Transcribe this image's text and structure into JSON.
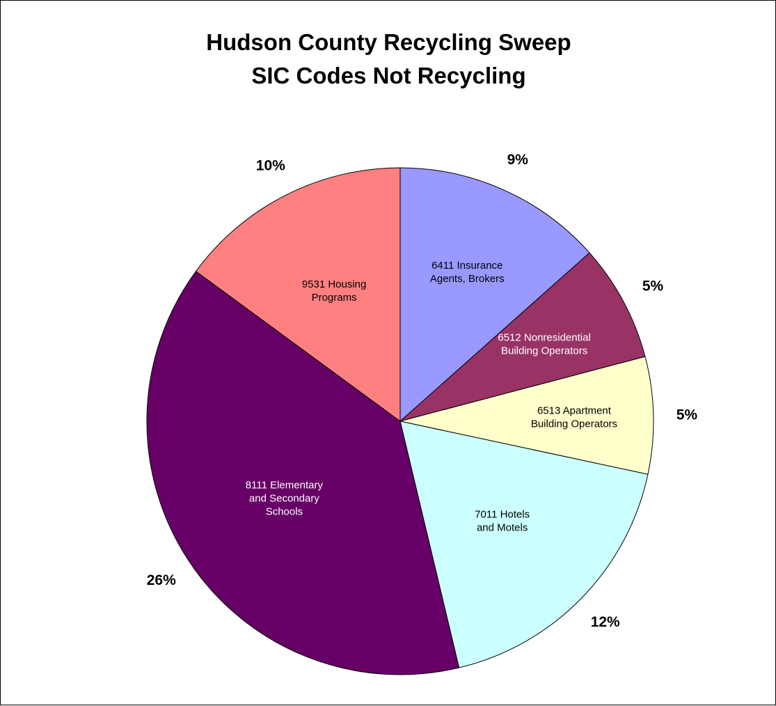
{
  "chart_data": {
    "type": "pie",
    "title": [
      "Hudson County Recycling Sweep",
      "SIC Codes Not Recycling"
    ],
    "slices": [
      {
        "label": [
          "6411 Insurance",
          "Agents, Brokers"
        ],
        "value_label": "9%",
        "value": 9,
        "color": "#9999ff",
        "text_color": "#000000"
      },
      {
        "label": [
          "6512 Nonresidential",
          "Building Operators"
        ],
        "value_label": "5%",
        "value": 5,
        "color": "#993366",
        "text_color": "#ffffff"
      },
      {
        "label": [
          "6513 Apartment",
          "Building Operators"
        ],
        "value_label": "5%",
        "value": 5,
        "color": "#ffffcc",
        "text_color": "#000000"
      },
      {
        "label": [
          "7011 Hotels",
          "and Motels"
        ],
        "value_label": "12%",
        "value": 12,
        "color": "#ccffff",
        "text_color": "#000000"
      },
      {
        "label": [
          "8111 Elementary",
          "and Secondary",
          "Schools"
        ],
        "value_label": "26%",
        "value": 26,
        "color": "#660066",
        "text_color": "#ffffff"
      },
      {
        "label": [
          "9531 Housing",
          "Programs"
        ],
        "value_label": "10%",
        "value": 10,
        "color": "#ff8080",
        "text_color": "#000000"
      }
    ],
    "legend": "none"
  }
}
